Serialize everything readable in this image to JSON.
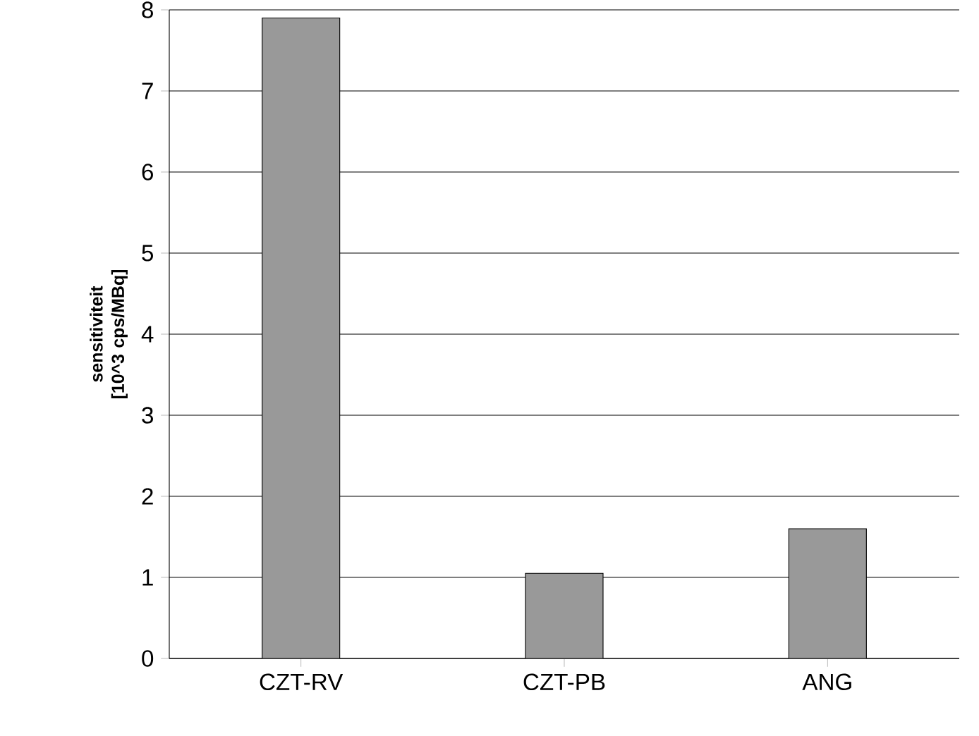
{
  "chart_data": {
    "type": "bar",
    "ylabel": "sensitiviteit [10^3 cps/MBq]",
    "categories": [
      "CZT-RV",
      "CZT-PB",
      "ANG"
    ],
    "values": [
      7.9,
      1.05,
      1.6
    ],
    "color": "#999999",
    "ylim": [
      0,
      8
    ],
    "yticks": [
      0,
      1,
      2,
      3,
      4,
      5,
      6,
      7,
      8
    ],
    "grid": "y"
  }
}
